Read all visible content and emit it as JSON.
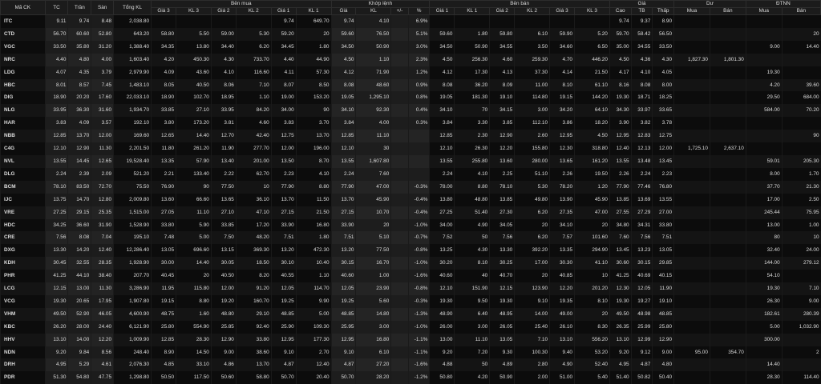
{
  "headers": {
    "top": {
      "symbol": "Mã CK",
      "ref": "TC",
      "ceil": "Trần",
      "floor": "Sàn",
      "volume": "Tổng KL",
      "buy": "Bên mua",
      "match": "Khớp lệnh",
      "sell": "Bên bán",
      "price": "Giá",
      "remain": "Dư",
      "foreign": "ĐTNN"
    },
    "buy": [
      "Giá 3",
      "KL 3",
      "Giá 2",
      "KL 2",
      "Giá 1",
      "KL 1"
    ],
    "match": [
      "Giá",
      "KL",
      "+/-",
      "%"
    ],
    "sell": [
      "Giá 1",
      "KL 1",
      "Giá 2",
      "KL 2",
      "Giá 3",
      "KL 3"
    ],
    "price": [
      "Cao",
      "TB",
      "Thấp"
    ],
    "remain": [
      "Mua",
      "Bán"
    ],
    "foreign": [
      "Mua",
      "Bán"
    ]
  },
  "colors": {
    "up": "#00d800",
    "down": "#ff3b3b",
    "ref": "#f5d10c",
    "ceil": "#ff2bff",
    "floor": "#2fd3ff"
  },
  "rows": [
    {
      "c": "c",
      "v": [
        "ITC",
        "9.11",
        "9.74",
        "8.48",
        "2,038.80",
        "",
        "",
        "",
        "",
        "9.74",
        "649.70",
        "9.74",
        "4.10",
        "",
        "6.9%",
        "",
        "",
        "",
        "",
        "",
        "",
        "9.74",
        "9.37",
        "8.90",
        "",
        "",
        "",
        ""
      ]
    },
    {
      "c": "u",
      "v": [
        "CTD",
        "56.70",
        "60.60",
        "52.80",
        "643.20",
        "58.80",
        "5.50",
        "59.00",
        "5.30",
        "59.20",
        "20",
        "59.60",
        "76.50",
        "",
        "5.1%",
        "59.60",
        "1.80",
        "59.80",
        "6.10",
        "59.90",
        "5.20",
        "59.70",
        "58.42",
        "56.50",
        "",
        "",
        "",
        "20"
      ]
    },
    {
      "c": "u",
      "v": [
        "VGC",
        "33.50",
        "35.80",
        "31.20",
        "1,388.40",
        "34.35",
        "13.80",
        "34.40",
        "6.20",
        "34.45",
        "1.80",
        "34.50",
        "50.90",
        "",
        "3.0%",
        "34.50",
        "50.90",
        "34.55",
        "3.50",
        "34.60",
        "6.50",
        "35.00",
        "34.55",
        "33.50",
        "",
        "",
        "9.00",
        "14.40"
      ]
    },
    {
      "c": "u",
      "v": [
        "NRC",
        "4.40",
        "4.80",
        "4.00",
        "1,603.40",
        "4.20",
        "450.30",
        "4.30",
        "733.70",
        "4.40",
        "44.90",
        "4.50",
        "1.10",
        "",
        "2.3%",
        "4.50",
        "256.30",
        "4.60",
        "259.30",
        "4.70",
        "446.20",
        "4.50",
        "4.36",
        "4.30",
        "1,827.30",
        "1,801.30",
        "",
        ""
      ]
    },
    {
      "c": "u",
      "v": [
        "LDG",
        "4.07",
        "4.35",
        "3.79",
        "2,979.90",
        "4.09",
        "43.60",
        "4.10",
        "116.60",
        "4.11",
        "57.30",
        "4.12",
        "71.90",
        "",
        "1.2%",
        "4.12",
        "17.30",
        "4.13",
        "37.30",
        "4.14",
        "21.50",
        "4.17",
        "4.10",
        "4.05",
        "",
        "",
        "19.30",
        ""
      ]
    },
    {
      "c": "u",
      "v": [
        "HBC",
        "8.01",
        "8.57",
        "7.45",
        "1,483.10",
        "8.05",
        "40.50",
        "8.06",
        "7.10",
        "8.07",
        "8.50",
        "8.08",
        "48.60",
        "",
        "0.9%",
        "8.08",
        "36.20",
        "8.09",
        "11.00",
        "8.10",
        "61.10",
        "8.16",
        "8.08",
        "8.00",
        "",
        "",
        "4.20",
        "39.60"
      ]
    },
    {
      "c": "u",
      "v": [
        "DIG",
        "18.90",
        "20.20",
        "17.60",
        "22,033.10",
        "18.90",
        "102.70",
        "18.95",
        "1.10",
        "19.00",
        "153.20",
        "19.05",
        "1,295.10",
        "",
        "0.8%",
        "19.05",
        "181.30",
        "19.10",
        "114.80",
        "19.15",
        "144.20",
        "19.30",
        "18.71",
        "18.25",
        "",
        "",
        "29.50",
        "684.00"
      ]
    },
    {
      "c": "u",
      "v": [
        "NLG",
        "33.95",
        "36.30",
        "31.60",
        "1,934.70",
        "33.85",
        "27.10",
        "33.95",
        "84.20",
        "34.00",
        "90",
        "34.10",
        "92.30",
        "",
        "0.4%",
        "34.10",
        "70",
        "34.15",
        "3.00",
        "34.20",
        "64.10",
        "34.30",
        "33.97",
        "33.65",
        "",
        "",
        "584.00",
        "70.20"
      ]
    },
    {
      "c": "u",
      "v": [
        "HAR",
        "3.83",
        "4.09",
        "3.57",
        "192.10",
        "3.80",
        "173.20",
        "3.81",
        "4.60",
        "3.83",
        "3.70",
        "3.84",
        "4.00",
        "",
        "0.3%",
        "3.84",
        "3.30",
        "3.85",
        "112.10",
        "3.86",
        "18.20",
        "3.90",
        "3.82",
        "3.78",
        "",
        "",
        "",
        ""
      ]
    },
    {
      "c": "r",
      "v": [
        "NBB",
        "12.85",
        "13.70",
        "12.00",
        "169.60",
        "12.65",
        "14.40",
        "12.70",
        "42.40",
        "12.75",
        "13.70",
        "12.85",
        "11.10",
        "",
        "",
        "12.85",
        "2.30",
        "12.90",
        "2.60",
        "12.95",
        "4.50",
        "12.95",
        "12.83",
        "12.75",
        "",
        "",
        "",
        "90"
      ]
    },
    {
      "c": "r",
      "v": [
        "C4G",
        "12.10",
        "12.90",
        "11.30",
        "2,201.50",
        "11.80",
        "261.20",
        "11.90",
        "277.70",
        "12.00",
        "196.00",
        "12.10",
        "30",
        "",
        "",
        "12.10",
        "26.30",
        "12.20",
        "155.80",
        "12.30",
        "318.80",
        "12.40",
        "12.13",
        "12.00",
        "1,725.10",
        "2,637.10",
        "",
        ""
      ]
    },
    {
      "c": "r",
      "v": [
        "NVL",
        "13.55",
        "14.45",
        "12.65",
        "19,528.40",
        "13.35",
        "57.90",
        "13.40",
        "201.00",
        "13.50",
        "8.70",
        "13.55",
        "1,607.80",
        "",
        "",
        "13.55",
        "255.80",
        "13.60",
        "280.00",
        "13.65",
        "161.20",
        "13.55",
        "13.48",
        "13.45",
        "",
        "",
        "59.01",
        "205.30"
      ]
    },
    {
      "c": "r",
      "v": [
        "DLG",
        "2.24",
        "2.39",
        "2.09",
        "521.20",
        "2.21",
        "133.40",
        "2.22",
        "62.70",
        "2.23",
        "4.10",
        "2.24",
        "7.60",
        "",
        "",
        "2.24",
        "4.10",
        "2.25",
        "51.10",
        "2.26",
        "19.50",
        "2.26",
        "2.24",
        "2.23",
        "",
        "",
        "8.00",
        "1.70"
      ]
    },
    {
      "c": "d",
      "v": [
        "BCM",
        "78.10",
        "83.50",
        "72.70",
        "75.50",
        "76.90",
        "90",
        "77.50",
        "10",
        "77.90",
        "8.80",
        "77.90",
        "47.00",
        "",
        "-0.3%",
        "78.00",
        "8.80",
        "78.10",
        "5.30",
        "78.20",
        "1.20",
        "77.90",
        "77.46",
        "76.80",
        "",
        "",
        "37.70",
        "21.30"
      ]
    },
    {
      "c": "d",
      "v": [
        "IJC",
        "13.75",
        "14.70",
        "12.80",
        "2,009.80",
        "13.60",
        "66.60",
        "13.65",
        "36.10",
        "13.70",
        "11.50",
        "13.70",
        "45.90",
        "",
        "-0.4%",
        "13.80",
        "48.80",
        "13.85",
        "49.80",
        "13.90",
        "45.90",
        "13.85",
        "13.69",
        "13.55",
        "",
        "",
        "17.00",
        "2.50"
      ]
    },
    {
      "c": "d",
      "v": [
        "VRE",
        "27.25",
        "29.15",
        "25.35",
        "1,515.00",
        "27.05",
        "11.10",
        "27.10",
        "47.10",
        "27.15",
        "21.50",
        "27.15",
        "10.70",
        "",
        "-0.4%",
        "27.25",
        "51.40",
        "27.30",
        "6.20",
        "27.35",
        "47.00",
        "27.55",
        "27.29",
        "27.00",
        "",
        "",
        "245.44",
        "75.95"
      ]
    },
    {
      "c": "d",
      "v": [
        "HDC",
        "34.25",
        "36.60",
        "31.90",
        "1,528.90",
        "33.80",
        "5.90",
        "33.85",
        "17.20",
        "33.90",
        "16.80",
        "33.90",
        "20",
        "",
        "-1.0%",
        "34.00",
        "4.90",
        "34.05",
        "20",
        "34.10",
        "20",
        "34.80",
        "34.31",
        "33.80",
        "",
        "",
        "13.00",
        "1.00"
      ]
    },
    {
      "c": "d",
      "v": [
        "CRE",
        "7.56",
        "8.08",
        "7.04",
        "195.10",
        "7.48",
        "5.00",
        "7.50",
        "48.20",
        "7.51",
        "1.80",
        "7.51",
        "5.10",
        "",
        "-0.7%",
        "7.52",
        "50",
        "7.56",
        "6.20",
        "7.57",
        "101.60",
        "7.60",
        "7.56",
        "7.51",
        "",
        "",
        "80",
        "10"
      ]
    },
    {
      "c": "d",
      "v": [
        "DXG",
        "13.30",
        "14.20",
        "12.40",
        "12,286.40",
        "13.05",
        "696.60",
        "13.15",
        "369.30",
        "13.20",
        "472.30",
        "13.20",
        "77.50",
        "",
        "-0.8%",
        "13.25",
        "4.30",
        "13.30",
        "392.20",
        "13.35",
        "294.90",
        "13.45",
        "13.23",
        "13.05",
        "",
        "",
        "32.40",
        "24.00"
      ]
    },
    {
      "c": "d",
      "v": [
        "KDH",
        "30.45",
        "32.55",
        "28.35",
        "1,928.90",
        "30.00",
        "14.40",
        "30.05",
        "18.50",
        "30.10",
        "10.40",
        "30.15",
        "16.70",
        "",
        "-1.0%",
        "30.20",
        "8.10",
        "30.25",
        "17.00",
        "30.30",
        "41.10",
        "30.60",
        "30.15",
        "29.85",
        "",
        "",
        "144.00",
        "279.12"
      ]
    },
    {
      "c": "d",
      "v": [
        "PHR",
        "41.25",
        "44.10",
        "38.40",
        "207.70",
        "40.45",
        "20",
        "40.50",
        "8.20",
        "40.55",
        "1.10",
        "40.60",
        "1.00",
        "",
        "-1.6%",
        "40.60",
        "40",
        "40.70",
        "20",
        "40.85",
        "10",
        "41.25",
        "40.69",
        "40.15",
        "",
        "",
        "54.10",
        ""
      ]
    },
    {
      "c": "d",
      "v": [
        "LCG",
        "12.15",
        "13.00",
        "11.30",
        "3,286.90",
        "11.95",
        "115.80",
        "12.00",
        "91.20",
        "12.05",
        "114.70",
        "12.05",
        "23.90",
        "",
        "-0.8%",
        "12.10",
        "151.90",
        "12.15",
        "123.90",
        "12.20",
        "201.20",
        "12.30",
        "12.05",
        "11.90",
        "",
        "",
        "19.30",
        "7.10"
      ]
    },
    {
      "c": "d",
      "v": [
        "VCG",
        "19.30",
        "20.65",
        "17.95",
        "1,907.80",
        "19.15",
        "8.80",
        "19.20",
        "160.70",
        "19.25",
        "9.90",
        "19.25",
        "5.60",
        "",
        "-0.3%",
        "19.30",
        "9.50",
        "19.30",
        "9.10",
        "19.35",
        "8.10",
        "19.30",
        "19.27",
        "19.10",
        "",
        "",
        "26.30",
        "9.00"
      ]
    },
    {
      "c": "d",
      "v": [
        "VHM",
        "49.50",
        "52.90",
        "46.05",
        "4,600.90",
        "48.75",
        "1.60",
        "48.80",
        "29.10",
        "48.85",
        "5.00",
        "48.85",
        "14.80",
        "",
        "-1.3%",
        "48.90",
        "6.40",
        "48.95",
        "14.00",
        "49.00",
        "20",
        "49.50",
        "48.98",
        "48.85",
        "",
        "",
        "182.61",
        "280.39"
      ]
    },
    {
      "c": "d",
      "v": [
        "KBC",
        "26.20",
        "28.00",
        "24.40",
        "6,121.90",
        "25.80",
        "554.90",
        "25.85",
        "92.40",
        "25.90",
        "109.30",
        "25.95",
        "3.00",
        "",
        "-1.0%",
        "26.00",
        "3.00",
        "26.05",
        "25.40",
        "26.10",
        "8.30",
        "26.35",
        "25.99",
        "25.80",
        "",
        "",
        "5.00",
        "1,032.90"
      ]
    },
    {
      "c": "d",
      "v": [
        "HHV",
        "13.10",
        "14.00",
        "12.20",
        "1,009.90",
        "12.85",
        "28.30",
        "12.90",
        "33.80",
        "12.95",
        "177.30",
        "12.95",
        "16.80",
        "",
        "-1.1%",
        "13.00",
        "11.10",
        "13.05",
        "7.10",
        "13.10",
        "556.20",
        "13.10",
        "12.99",
        "12.90",
        "",
        "",
        "300.00",
        ""
      ]
    },
    {
      "c": "d",
      "v": [
        "NDN",
        "9.20",
        "9.84",
        "8.56",
        "248.40",
        "8.90",
        "14.50",
        "9.00",
        "38.60",
        "9.10",
        "2.70",
        "9.10",
        "6.10",
        "",
        "-1.1%",
        "9.20",
        "7.20",
        "9.30",
        "100.30",
        "9.40",
        "53.20",
        "9.20",
        "9.12",
        "9.00",
        "95.00",
        "354.70",
        "",
        "2"
      ]
    },
    {
      "c": "d",
      "v": [
        "DRH",
        "4.95",
        "5.29",
        "4.61",
        "2,076.30",
        "4.85",
        "33.10",
        "4.86",
        "13.70",
        "4.87",
        "12.40",
        "4.87",
        "27.20",
        "",
        "-1.6%",
        "4.88",
        "50",
        "4.89",
        "2.80",
        "4.90",
        "52.40",
        "4.95",
        "4.87",
        "4.80",
        "",
        "",
        "14.40",
        ""
      ]
    },
    {
      "c": "d",
      "v": [
        "PDR",
        "51.30",
        "54.80",
        "47.75",
        "1,298.80",
        "50.50",
        "117.50",
        "50.60",
        "58.80",
        "50.70",
        "20.40",
        "50.70",
        "28.20",
        "",
        "-1.2%",
        "50.80",
        "4.20",
        "50.90",
        "2.00",
        "51.00",
        "5.40",
        "51.40",
        "50.82",
        "50.40",
        "",
        "",
        "28.30",
        "114.40"
      ]
    }
  ]
}
